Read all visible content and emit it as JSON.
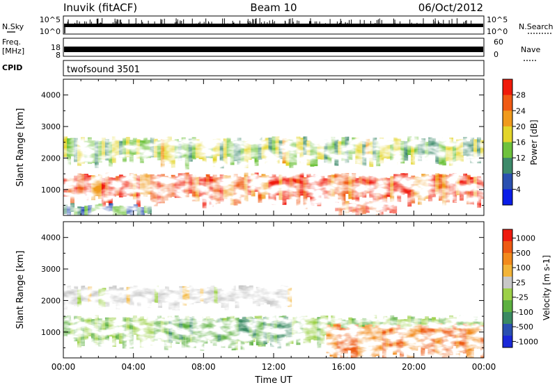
{
  "header": {
    "station": "Inuvik (fitACF)",
    "beam": "Beam 10",
    "date": "06/Oct/2012"
  },
  "strips": {
    "nsky": {
      "left_label": "N.Sky",
      "right_label": "N.Search",
      "left_ticks": [
        "10^5",
        "10^0"
      ],
      "right_ticks": [
        "10^5",
        "10^0"
      ]
    },
    "freq": {
      "left_label_top": "Freq.",
      "left_label_unit": "[MHz]",
      "right_label": "Nave",
      "left_ticks": [
        "18",
        "8"
      ],
      "right_ticks": [
        "60",
        "0"
      ]
    },
    "cpid": {
      "left_label": "CPID",
      "program": "twofsound 3501"
    }
  },
  "colors": {
    "power_scale": [
      "#0a1de8",
      "#2a50b0",
      "#3d8a6a",
      "#6ec23c",
      "#e3d52a",
      "#f09a1c",
      "#f05a14",
      "#f01a0a"
    ],
    "velocity_scale": [
      "#ee1a0e",
      "#ee5a12",
      "#f28a1c",
      "#f2b438",
      "#c8c8c8",
      "#9cd048",
      "#5cb040",
      "#3a8a62",
      "#2a50b0",
      "#1a28d8"
    ]
  },
  "chart_data": [
    {
      "type": "heatmap",
      "title": "",
      "xlabel": "",
      "ylabel": "Slant Range [km]",
      "x_range_hours": [
        0,
        24
      ],
      "ylim": [
        180,
        4500
      ],
      "x_ticks": [
        "00:00",
        "04:00",
        "08:00",
        "12:00",
        "16:00",
        "20:00",
        "00:00"
      ],
      "y_ticks": [
        "1000",
        "2000",
        "3000",
        "4000"
      ],
      "y_tick_values": [
        1000,
        2000,
        3000,
        4000
      ],
      "colorbar": {
        "label": "Power [dB]",
        "ticks": [
          "4",
          "8",
          "12",
          "16",
          "20",
          "24",
          "28"
        ],
        "range": [
          0,
          30
        ]
      },
      "bands": [
        {
          "label": "main scatter band",
          "x_start": 0,
          "x_end": 24,
          "y_low": 600,
          "y_high": 1450,
          "value": 26
        },
        {
          "label": "upper band",
          "x_start": 0,
          "x_end": 24,
          "y_low": 1850,
          "y_high": 2600,
          "value": 14
        },
        {
          "label": "near-range early",
          "x_start": 0,
          "x_end": 5,
          "y_low": 200,
          "y_high": 500,
          "value": 10
        },
        {
          "label": "near-range late",
          "x_start": 15.5,
          "x_end": 19,
          "y_low": 200,
          "y_high": 550,
          "value": 27
        }
      ]
    },
    {
      "type": "heatmap",
      "title": "",
      "xlabel": "Time UT",
      "ylabel": "Slant Range [km]",
      "x_range_hours": [
        0,
        24
      ],
      "ylim": [
        180,
        4500
      ],
      "x_ticks": [
        "00:00",
        "04:00",
        "08:00",
        "12:00",
        "16:00",
        "20:00",
        "00:00"
      ],
      "y_ticks": [
        "1000",
        "2000",
        "3000",
        "4000"
      ],
      "y_tick_values": [
        1000,
        2000,
        3000,
        4000
      ],
      "colorbar": {
        "label": "Velocity [m s-1]",
        "ticks": [
          "1000",
          "500",
          "100",
          "25",
          "-25",
          "-100",
          "-500",
          "-1000"
        ]
      },
      "bands": [
        {
          "label": "main band",
          "x_start": 0,
          "x_end": 24,
          "y_low": 600,
          "y_high": 1450,
          "value": 100
        },
        {
          "label": "ground scatter",
          "x_start": 0,
          "x_end": 13,
          "y_low": 1850,
          "y_high": 2400,
          "value": 0
        },
        {
          "label": "positive velocity",
          "x_start": 6,
          "x_end": 13,
          "y_low": 600,
          "y_high": 1400,
          "value": 500
        },
        {
          "label": "negative velocity",
          "x_start": 15,
          "x_end": 24,
          "y_low": 200,
          "y_high": 1200,
          "value": -500
        }
      ]
    }
  ]
}
